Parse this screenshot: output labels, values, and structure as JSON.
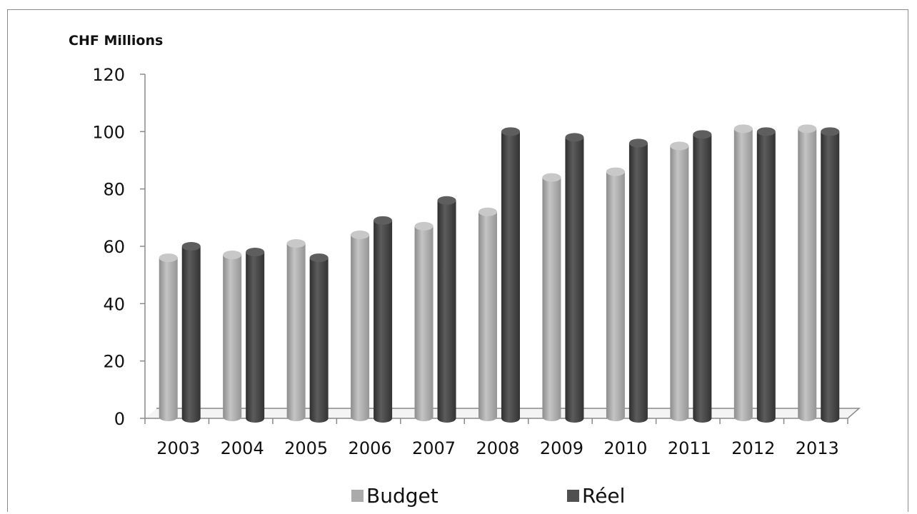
{
  "chart_data": {
    "type": "bar",
    "title": "",
    "unit_label": "CHF Millions",
    "xlabel": "",
    "ylabel": "",
    "categories": [
      "2003",
      "2004",
      "2005",
      "2006",
      "2007",
      "2008",
      "2009",
      "2010",
      "2011",
      "2012",
      "2013"
    ],
    "series": [
      {
        "name": "Budget",
        "color": "#aaaaaa",
        "values": [
          56,
          57,
          61,
          64,
          67,
          72,
          84,
          86,
          95,
          101,
          101
        ]
      },
      {
        "name": "Réel",
        "color": "#505050",
        "values": [
          60,
          58,
          56,
          69,
          76,
          100,
          98,
          96,
          99,
          100,
          100
        ]
      }
    ],
    "ylim": [
      0,
      120
    ],
    "yticks": [
      0,
      20,
      40,
      60,
      80,
      100,
      120
    ],
    "grid": false,
    "legend_position": "bottom",
    "style": "3d-cylinder"
  }
}
